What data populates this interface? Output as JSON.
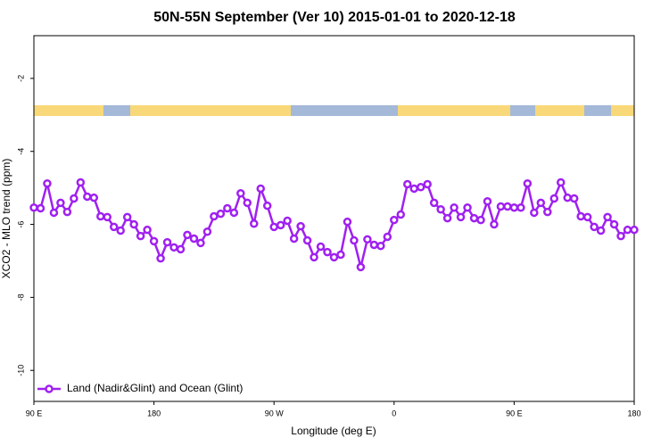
{
  "chart_data": {
    "type": "line",
    "title": "50N-55N September (Ver 10)   2015-01-01 to 2020-12-18",
    "xlabel": "Longitude (deg E)",
    "ylabel": "XCO2 - MLO trend (ppm)",
    "xlim": [
      90,
      540
    ],
    "ylim": [
      -10.85,
      -0.83
    ],
    "xticks": [
      {
        "value": 90,
        "label": "90 E"
      },
      {
        "value": 180,
        "label": "180"
      },
      {
        "value": 270,
        "label": "90 W"
      },
      {
        "value": 360,
        "label": "0"
      },
      {
        "value": 450,
        "label": "90 E"
      },
      {
        "value": 540,
        "label": "180"
      }
    ],
    "yticks": [
      -10,
      -8,
      -6,
      -4,
      -2
    ],
    "legend": "bottom-left",
    "x": [
      90,
      95,
      100,
      105,
      110,
      115,
      120,
      125,
      130,
      135,
      140,
      145,
      150,
      155,
      160,
      165,
      170,
      175,
      180,
      185,
      190,
      195,
      200,
      205,
      210,
      215,
      220,
      225,
      230,
      235,
      240,
      245,
      250,
      255,
      260,
      265,
      270,
      275,
      280,
      285,
      290,
      295,
      300,
      305,
      310,
      315,
      320,
      325,
      330,
      335,
      340,
      345,
      350,
      355,
      360,
      365,
      370,
      375,
      380,
      385,
      390,
      395,
      400,
      405,
      410,
      415,
      420,
      425,
      430,
      435,
      440,
      445,
      450,
      455,
      460,
      465,
      470,
      475,
      480,
      485,
      490,
      495,
      500,
      505,
      510,
      515,
      520,
      525,
      530,
      535,
      540
    ],
    "series": [
      {
        "name": "Land (Nadir&Glint) and Ocean (Glint)",
        "color": "#a020f0",
        "values": [
          -5.54,
          -5.56,
          -4.88,
          -5.68,
          -5.41,
          -5.66,
          -5.29,
          -4.85,
          -5.24,
          -5.27,
          -5.78,
          -5.8,
          -6.07,
          -6.17,
          -5.8,
          -6.0,
          -6.32,
          -6.15,
          -6.46,
          -6.93,
          -6.49,
          -6.63,
          -6.68,
          -6.29,
          -6.39,
          -6.51,
          -6.2,
          -5.78,
          -5.71,
          -5.56,
          -5.68,
          -5.15,
          -5.41,
          -5.98,
          -5.02,
          -5.49,
          -6.07,
          -6.02,
          -5.9,
          -6.39,
          -6.05,
          -6.44,
          -6.9,
          -6.61,
          -6.76,
          -6.9,
          -6.83,
          -5.93,
          -6.44,
          -7.17,
          -6.41,
          -6.56,
          -6.59,
          -6.34,
          -5.88,
          -5.73,
          -4.9,
          -5.02,
          -4.98,
          -4.9,
          -5.41,
          -5.59,
          -5.83,
          -5.54,
          -5.8,
          -5.54,
          -5.83,
          -5.88,
          -5.37,
          -6.0,
          -5.51,
          -5.51,
          -5.54,
          -5.54,
          -4.88,
          -5.68,
          -5.41,
          -5.66,
          -5.29,
          -4.85,
          -5.27,
          -5.29,
          -5.78,
          -5.8,
          -6.07,
          -6.17,
          -5.8,
          -6.0,
          -6.32,
          -6.15,
          -6.15
        ]
      }
    ]
  }
}
